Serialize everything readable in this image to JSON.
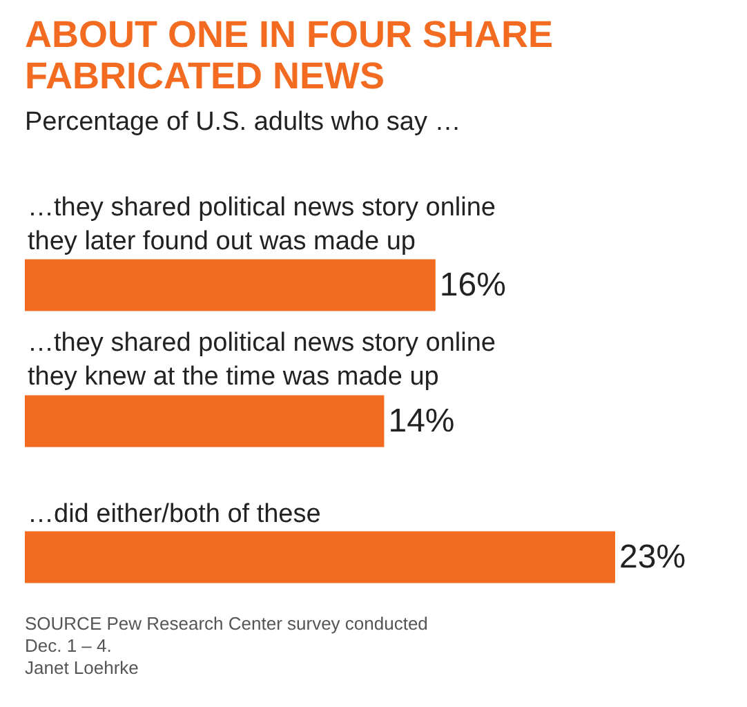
{
  "chart_data": {
    "type": "bar",
    "orientation": "horizontal",
    "title": "ABOUT ONE IN FOUR SHARE FABRICATED NEWS",
    "subtitle": "Percentage of U.S. adults who say …",
    "categories": [
      "…they shared political news story online they later found out was made up",
      "…they shared political news story online they knew at the time was made up",
      "…did either/both of these"
    ],
    "values": [
      16,
      14,
      23
    ],
    "value_labels": [
      "16%",
      "14%",
      "23%"
    ],
    "color": "#f26b21",
    "annotations": [
      "SOURCE Pew Research Center survey conducted Dec. 1 – 4.",
      "Janet Loehrke"
    ]
  }
}
